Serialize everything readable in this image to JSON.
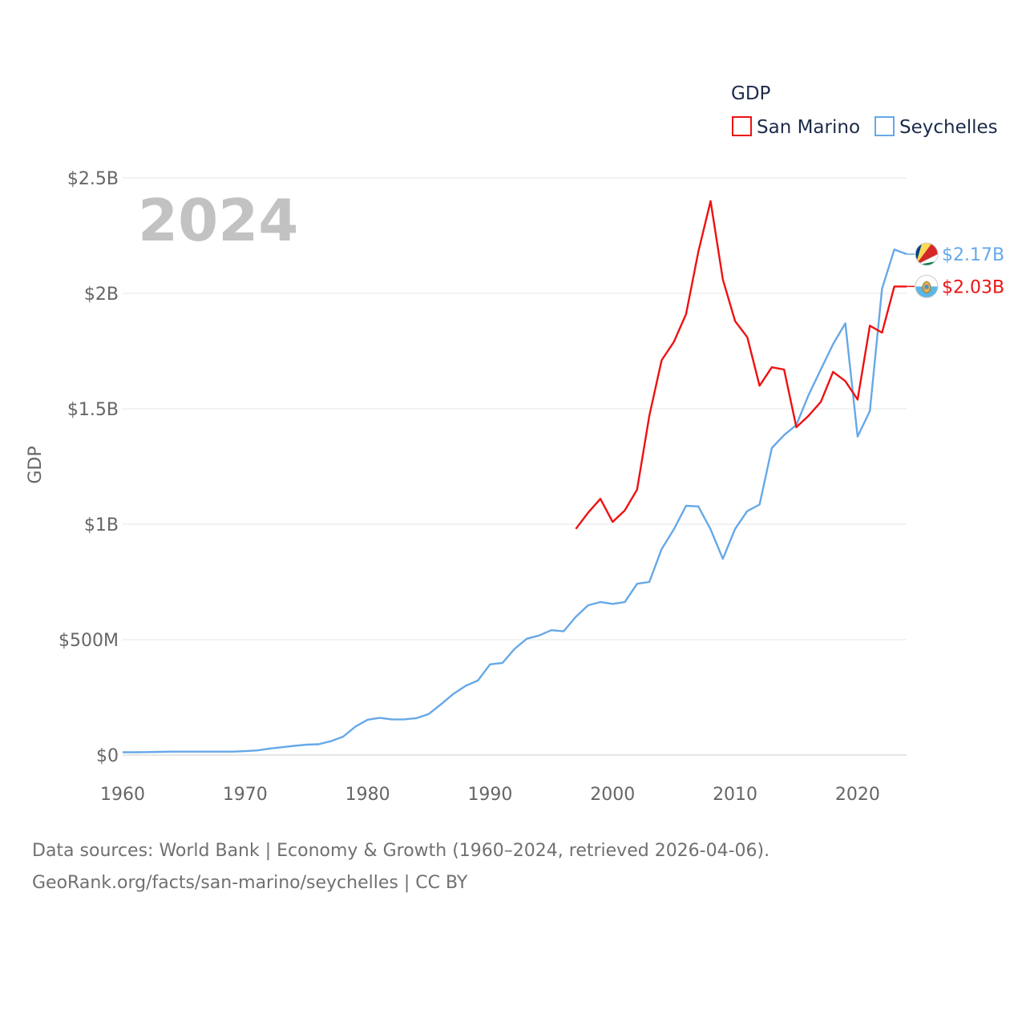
{
  "chart_data": {
    "type": "line",
    "title": "",
    "year_stamp": "2024",
    "legend_title": "GDP",
    "ylabel": "GDP",
    "xlabel": "",
    "xlim": [
      1960,
      2024
    ],
    "ylim": [
      0,
      2500000000
    ],
    "x_ticks": [
      1960,
      1970,
      1980,
      1990,
      2000,
      2010,
      2020
    ],
    "x_tick_labels": [
      "1960",
      "1970",
      "1980",
      "1990",
      "2000",
      "2010",
      "2020"
    ],
    "y_ticks": [
      0,
      500000000,
      1000000000,
      1500000000,
      2000000000,
      2500000000
    ],
    "y_tick_labels": [
      "$0",
      "$500M",
      "$1B",
      "$1.5B",
      "$2B",
      "$2.5B"
    ],
    "grid": true,
    "legend_position": "top-right",
    "series": [
      {
        "name": "San Marino",
        "color": "#ee1111",
        "end_label": "$2.03B",
        "flag_icon": "san-marino-flag-icon",
        "x": [
          1997,
          1998,
          1999,
          2000,
          2001,
          2002,
          2003,
          2004,
          2005,
          2006,
          2007,
          2008,
          2009,
          2010,
          2011,
          2012,
          2013,
          2014,
          2015,
          2016,
          2017,
          2018,
          2019,
          2020,
          2021,
          2022,
          2023,
          2024
        ],
        "values": [
          980000000,
          1050000000,
          1110000000,
          1010000000,
          1060000000,
          1150000000,
          1470000000,
          1710000000,
          1790000000,
          1910000000,
          2180000000,
          2400000000,
          2060000000,
          1880000000,
          1810000000,
          1600000000,
          1680000000,
          1670000000,
          1420000000,
          1470000000,
          1530000000,
          1660000000,
          1620000000,
          1540000000,
          1860000000,
          1830000000,
          2030000000,
          2030000000
        ]
      },
      {
        "name": "Seychelles",
        "color": "#66a8e8",
        "end_label": "$2.17B",
        "flag_icon": "seychelles-flag-icon",
        "x": [
          1960,
          1961,
          1962,
          1963,
          1964,
          1965,
          1966,
          1967,
          1968,
          1969,
          1970,
          1971,
          1972,
          1973,
          1974,
          1975,
          1976,
          1977,
          1978,
          1979,
          1980,
          1981,
          1982,
          1983,
          1984,
          1985,
          1986,
          1987,
          1988,
          1989,
          1990,
          1991,
          1992,
          1993,
          1994,
          1995,
          1996,
          1997,
          1998,
          1999,
          2000,
          2001,
          2002,
          2003,
          2004,
          2005,
          2006,
          2007,
          2008,
          2009,
          2010,
          2011,
          2012,
          2013,
          2014,
          2015,
          2016,
          2017,
          2018,
          2019,
          2020,
          2021,
          2022,
          2023,
          2024
        ],
        "values": [
          12000000,
          12000000,
          13000000,
          14000000,
          15000000,
          15000000,
          15000000,
          15000000,
          15000000,
          15000000,
          17000000,
          20000000,
          28000000,
          34000000,
          40000000,
          45000000,
          47000000,
          60000000,
          80000000,
          123000000,
          153000000,
          161000000,
          154000000,
          155000000,
          160000000,
          178000000,
          220000000,
          265000000,
          300000000,
          323000000,
          393000000,
          399000000,
          460000000,
          504000000,
          518000000,
          541000000,
          536000000,
          599000000,
          649000000,
          663000000,
          655000000,
          663000000,
          742000000,
          750000000,
          892000000,
          978000000,
          1080000000,
          1077000000,
          978000000,
          850000000,
          980000000,
          1057000000,
          1085000000,
          1330000000,
          1386000000,
          1430000000,
          1560000000,
          1670000000,
          1780000000,
          1870000000,
          1380000000,
          1490000000,
          2020000000,
          2190000000,
          2170000000
        ]
      }
    ]
  },
  "source": {
    "line1": "Data sources: World Bank | Economy & Growth (1960–2024, retrieved 2026-04-06).",
    "line2": "GeoRank.org/facts/san-marino/seychelles | CC BY"
  }
}
